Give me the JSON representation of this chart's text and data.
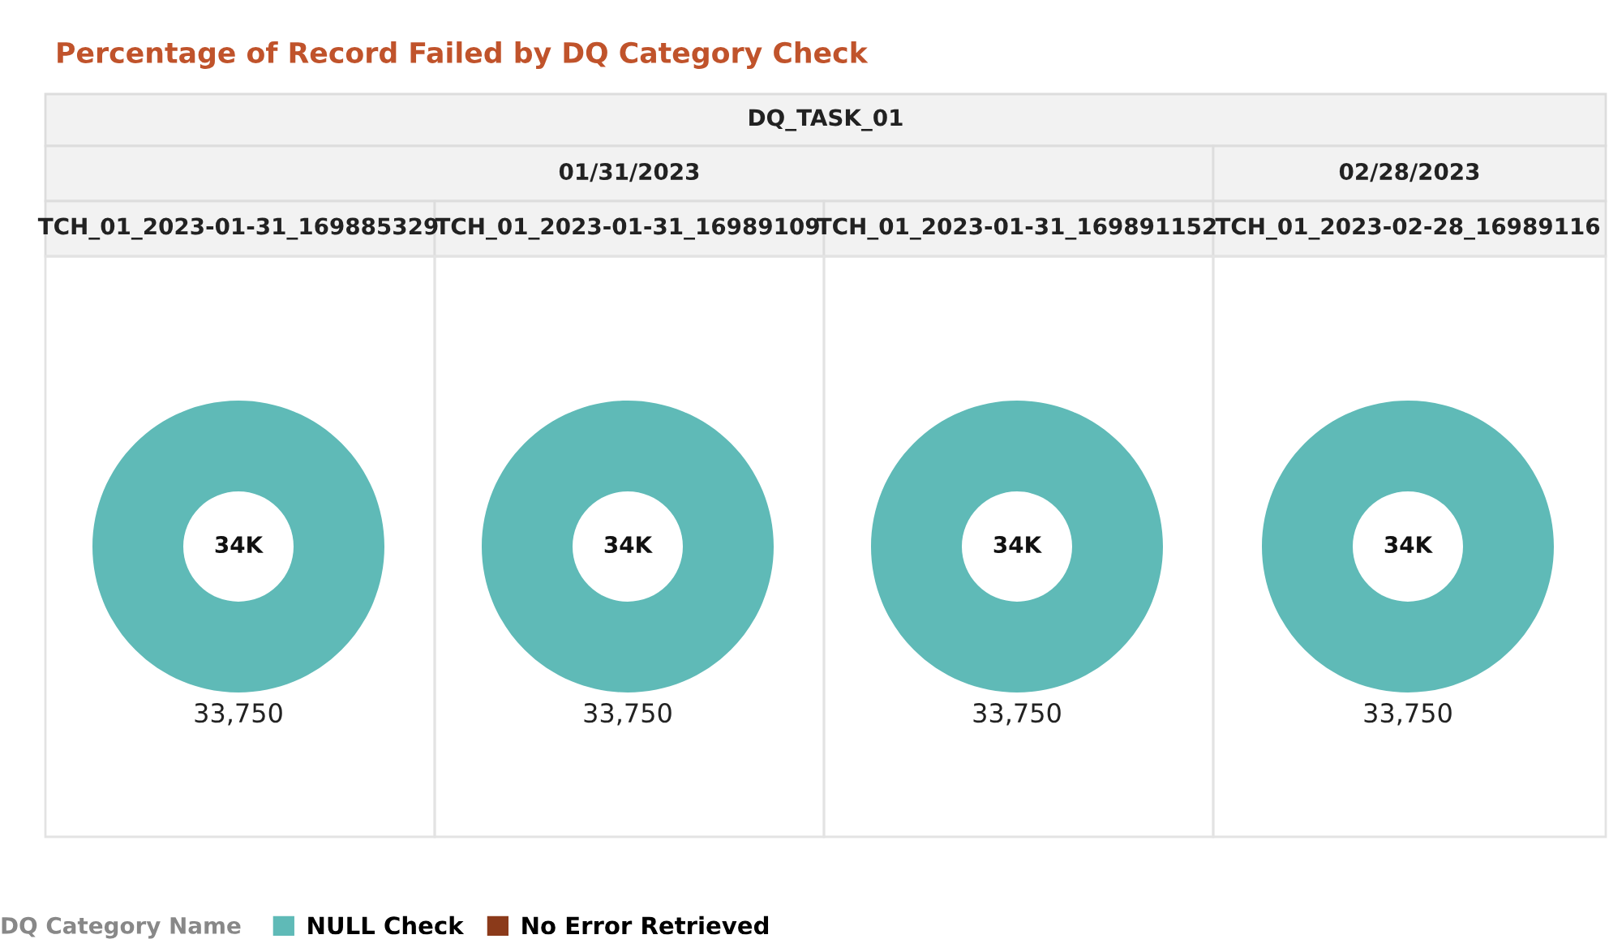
{
  "chart_data": [
    {
      "type": "other",
      "title": "Percentage of Record Failed by DQ Category Check",
      "annotations": [
        "DQ_TASK_01",
        "01/31/2023",
        "02/28/2023"
      ]
    },
    {
      "type": "pie",
      "title": "TCH_01_2023-01-31_169885329",
      "categories": [
        "NULL Check",
        "No Error Retrieved"
      ],
      "values": [
        100,
        0
      ],
      "colors": [
        "#5fbab7",
        "#8b3a1a"
      ],
      "annotations": [
        "34K",
        "33,750"
      ],
      "legend": "bottom",
      "legend_title": "DQ Category Name"
    },
    {
      "type": "pie",
      "title": "TCH_01_2023-01-31_16989109",
      "values": [
        100,
        0
      ],
      "colors": [
        "#5fbab7",
        "#8b3a1a"
      ],
      "annotations": [
        "34K",
        "33,750"
      ]
    },
    {
      "type": "pie",
      "title": "TCH_01_2023-01-31_169891152",
      "values": [
        100,
        0
      ],
      "colors": [
        "#5fbab7",
        "#8b3a1a"
      ],
      "annotations": [
        "34K",
        "33,750"
      ]
    },
    {
      "type": "pie",
      "title": "TCH_01_2023-02-28_16989116",
      "values": [
        100,
        0
      ],
      "colors": [
        "#5fbab7",
        "#8b3a1a"
      ],
      "annotations": [
        "34K",
        "33,750"
      ]
    }
  ]
}
